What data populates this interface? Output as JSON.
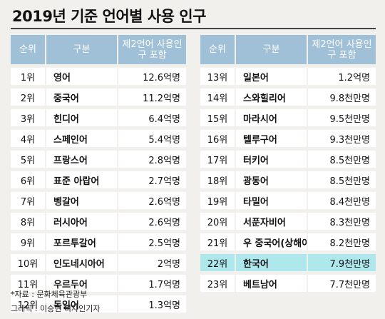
{
  "title": "2019년 기준 언어별 사용 인구",
  "header": {
    "rank": "순위",
    "category": "구분",
    "population": "제2언어 사용인구 포함"
  },
  "left_rows": [
    {
      "rank": "1위",
      "language": "영어",
      "population": "12.6억명"
    },
    {
      "rank": "2위",
      "language": "중국어",
      "population": "11.2억명"
    },
    {
      "rank": "3위",
      "language": "힌디어",
      "population": "6.4억명"
    },
    {
      "rank": "4위",
      "language": "스페인어",
      "population": "5.4억명"
    },
    {
      "rank": "5위",
      "language": "프랑스어",
      "population": "2.8억명"
    },
    {
      "rank": "6위",
      "language": "표준 아랍어",
      "population": "2.7억명"
    },
    {
      "rank": "7위",
      "language": "벵갈어",
      "population": "2.6억명"
    },
    {
      "rank": "8위",
      "language": "러시아어",
      "population": "2.6억명"
    },
    {
      "rank": "9위",
      "language": "포르투갈어",
      "population": "2.5억명"
    },
    {
      "rank": "10위",
      "language": "인도네시아어",
      "population": "2억명"
    },
    {
      "rank": "11위",
      "language": "우르두어",
      "population": "1.7억명"
    },
    {
      "rank": "12위",
      "language": "독일어",
      "population": "1.3억명"
    }
  ],
  "right_rows": [
    {
      "rank": "13위",
      "language": "일본어",
      "population": "1.2억명"
    },
    {
      "rank": "14위",
      "language": "스와힐리어",
      "population": "9.8천만명"
    },
    {
      "rank": "15위",
      "language": "마라시어",
      "population": "9.5천만명"
    },
    {
      "rank": "16위",
      "language": "텔루구어",
      "population": "9.3천만명"
    },
    {
      "rank": "17위",
      "language": "터키어",
      "population": "8.5천만명"
    },
    {
      "rank": "18위",
      "language": "광동어",
      "population": "8.5천만명"
    },
    {
      "rank": "19위",
      "language": "타밀어",
      "population": "8.4천만명"
    },
    {
      "rank": "20위",
      "language": "서푼자비어",
      "population": "8.3천만명"
    },
    {
      "rank": "21위",
      "language": "우 중국어(상해어)",
      "population": "8.2천만명"
    },
    {
      "rank": "22위",
      "language": "한국어",
      "population": "7.9천만명",
      "highlight": true
    },
    {
      "rank": "23위",
      "language": "베트남어",
      "population": "7.7천만명"
    }
  ],
  "source": "*자료 : 문화체육관광부",
  "credit": "그래픽 : 이승현 디자인기자",
  "colors": {
    "background": "#f1f0ed",
    "header": "#9fc0d6",
    "row": "#ffffff",
    "highlight": "#aee7ec",
    "title_rule": "#444444"
  }
}
